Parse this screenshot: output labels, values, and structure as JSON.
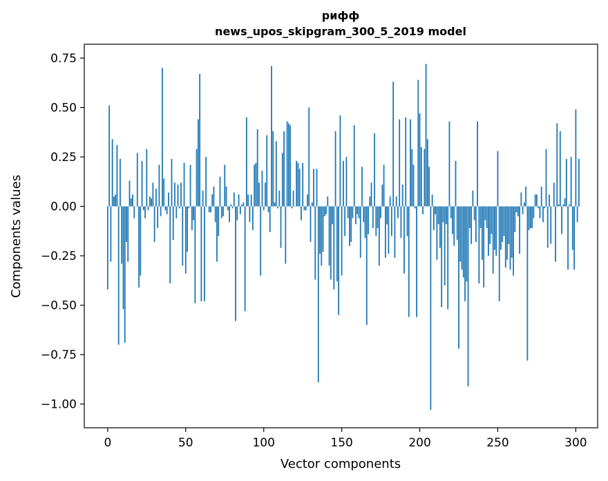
{
  "chart_data": {
    "type": "bar",
    "title_line1": "рифф",
    "title_line2": "news_upos_skipgram_300_5_2019 model",
    "xlabel": "Vector components",
    "ylabel": "Components values",
    "xlim": [
      -15,
      314
    ],
    "ylim": [
      -1.12,
      0.82
    ],
    "xticks": [
      0,
      50,
      100,
      150,
      200,
      250,
      300
    ],
    "yticks": [
      0.75,
      0.5,
      0.25,
      0.0,
      -0.25,
      -0.5,
      -0.75,
      -1.0
    ],
    "ytick_labels": [
      "0.75",
      "0.50",
      "0.25",
      "0.00",
      "−0.25",
      "−0.50",
      "−0.75",
      "−1.00"
    ],
    "bar_color": "#1f77b4",
    "values": [
      -0.42,
      0.51,
      -0.28,
      0.34,
      0.05,
      0.06,
      0.31,
      -0.7,
      0.24,
      -0.29,
      -0.52,
      -0.69,
      -0.18,
      -0.28,
      0.13,
      0.04,
      0.06,
      -0.06,
      0.0,
      0.27,
      -0.41,
      -0.35,
      0.23,
      -0.02,
      -0.06,
      0.29,
      -0.02,
      0.05,
      0.04,
      0.12,
      -0.18,
      0.09,
      -0.11,
      0.21,
      -0.05,
      0.7,
      0.14,
      -0.02,
      -0.04,
      0.07,
      -0.39,
      0.24,
      -0.17,
      0.12,
      -0.06,
      0.11,
      -0.01,
      0.12,
      -0.3,
      0.22,
      -0.34,
      -0.23,
      -0.01,
      0.21,
      -0.12,
      -0.07,
      -0.49,
      0.29,
      0.44,
      0.67,
      -0.48,
      0.08,
      -0.48,
      0.25,
      0.0,
      -0.03,
      -0.03,
      0.06,
      0.1,
      -0.08,
      -0.28,
      -0.15,
      0.15,
      -0.06,
      -0.05,
      0.21,
      0.1,
      -0.02,
      -0.08,
      0.01,
      -0.01,
      0.07,
      -0.58,
      -0.07,
      0.06,
      -0.04,
      0.01,
      0.02,
      -0.53,
      0.45,
      0.06,
      -0.08,
      0.06,
      -0.12,
      0.21,
      0.22,
      0.39,
      0.12,
      -0.35,
      0.18,
      -0.02,
      0.12,
      0.36,
      -0.03,
      -0.13,
      0.71,
      0.38,
      0.02,
      0.33,
      -0.01,
      0.08,
      -0.21,
      0.27,
      0.38,
      -0.29,
      0.43,
      0.42,
      0.41,
      -0.01,
      0.08,
      0.0,
      0.23,
      0.22,
      0.19,
      -0.07,
      0.22,
      -0.02,
      -0.02,
      0.06,
      0.5,
      -0.18,
      0.02,
      0.19,
      -0.37,
      0.19,
      -0.89,
      -0.24,
      -0.3,
      -0.23,
      -0.05,
      -0.04,
      0.05,
      -0.3,
      -0.37,
      -0.09,
      -0.42,
      0.38,
      -0.38,
      -0.55,
      0.46,
      -0.35,
      0.23,
      -0.15,
      0.25,
      -0.06,
      -0.2,
      -0.18,
      -0.06,
      0.41,
      -0.09,
      -0.04,
      -0.06,
      -0.26,
      0.2,
      -0.08,
      -0.16,
      -0.6,
      -0.14,
      0.05,
      0.12,
      -0.11,
      0.37,
      -0.15,
      -0.11,
      -0.3,
      -0.06,
      0.11,
      0.21,
      -0.26,
      -0.09,
      -0.24,
      0.05,
      -0.15,
      0.63,
      -0.26,
      0.05,
      -0.06,
      0.44,
      -0.16,
      0.11,
      -0.34,
      0.45,
      -0.15,
      -0.56,
      0.44,
      0.29,
      0.21,
      -0.01,
      -0.56,
      0.64,
      0.47,
      0.3,
      -0.04,
      0.29,
      0.72,
      0.34,
      0.2,
      -1.03,
      0.06,
      -0.12,
      -0.04,
      -0.27,
      -0.09,
      -0.21,
      -0.51,
      -0.08,
      -0.4,
      -0.09,
      -0.52,
      0.43,
      -0.06,
      -0.14,
      -0.2,
      0.23,
      -0.17,
      -0.72,
      -0.28,
      -0.32,
      -0.36,
      -0.48,
      -0.38,
      -0.91,
      -0.11,
      -0.19,
      0.08,
      -0.07,
      -0.18,
      0.43,
      -0.39,
      -0.11,
      -0.27,
      -0.41,
      -0.07,
      -0.11,
      -0.25,
      -0.19,
      -0.14,
      -0.34,
      -0.22,
      -0.25,
      0.28,
      -0.48,
      -0.22,
      -0.18,
      -0.15,
      -0.31,
      -0.27,
      -0.19,
      -0.32,
      -0.26,
      -0.35,
      -0.13,
      -0.03,
      -0.05,
      -0.24,
      0.07,
      -0.04,
      0.02,
      0.1,
      -0.78,
      -0.12,
      -0.11,
      -0.11,
      -0.06,
      0.06,
      0.06,
      -0.01,
      -0.06,
      0.1,
      -0.08,
      -0.01,
      0.29,
      -0.21,
      0.06,
      -0.19,
      0.0,
      0.12,
      -0.28,
      0.42,
      0.01,
      0.38,
      -0.14,
      0.01,
      0.04,
      0.24,
      -0.32,
      0.01,
      0.25,
      -0.22,
      -0.32,
      0.49,
      -0.08,
      0.24
    ]
  }
}
